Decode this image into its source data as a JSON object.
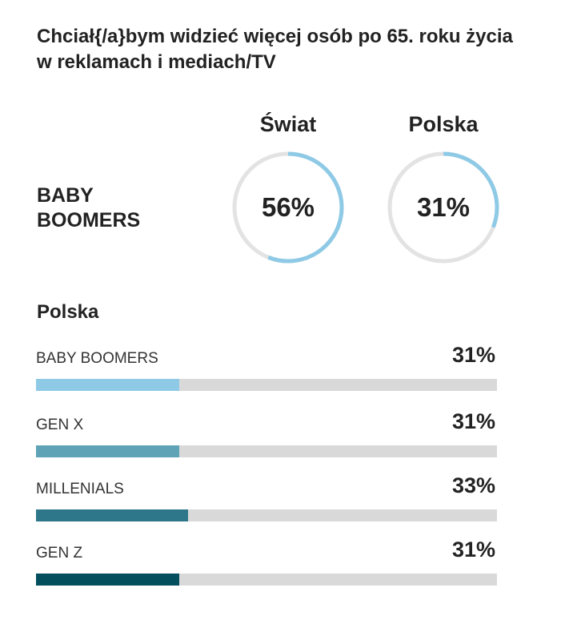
{
  "chart_data": {
    "type": "bar",
    "title": "Chciał{/a}bym widzieć więcej osób po 65. roku życia w reklamach i mediach/TV",
    "donuts": {
      "row_label": "BABY BOOMERS",
      "items": [
        {
          "label": "Świat",
          "value": 56,
          "display": "56%",
          "color": "#8ecae6"
        },
        {
          "label": "Polska",
          "value": 31,
          "display": "31%",
          "color": "#8ecae6"
        }
      ]
    },
    "section_title": "Polska",
    "categories": [
      "BABY BOOMERS",
      "GEN X",
      "MILLENIALS",
      "GEN Z"
    ],
    "values": [
      31,
      31,
      33,
      31
    ],
    "display": [
      "31%",
      "31%",
      "33%",
      "31%"
    ],
    "colors": [
      "#8ecae6",
      "#5fa3b7",
      "#2e7689",
      "#034f5e"
    ],
    "ylim": [
      0,
      100
    ]
  }
}
